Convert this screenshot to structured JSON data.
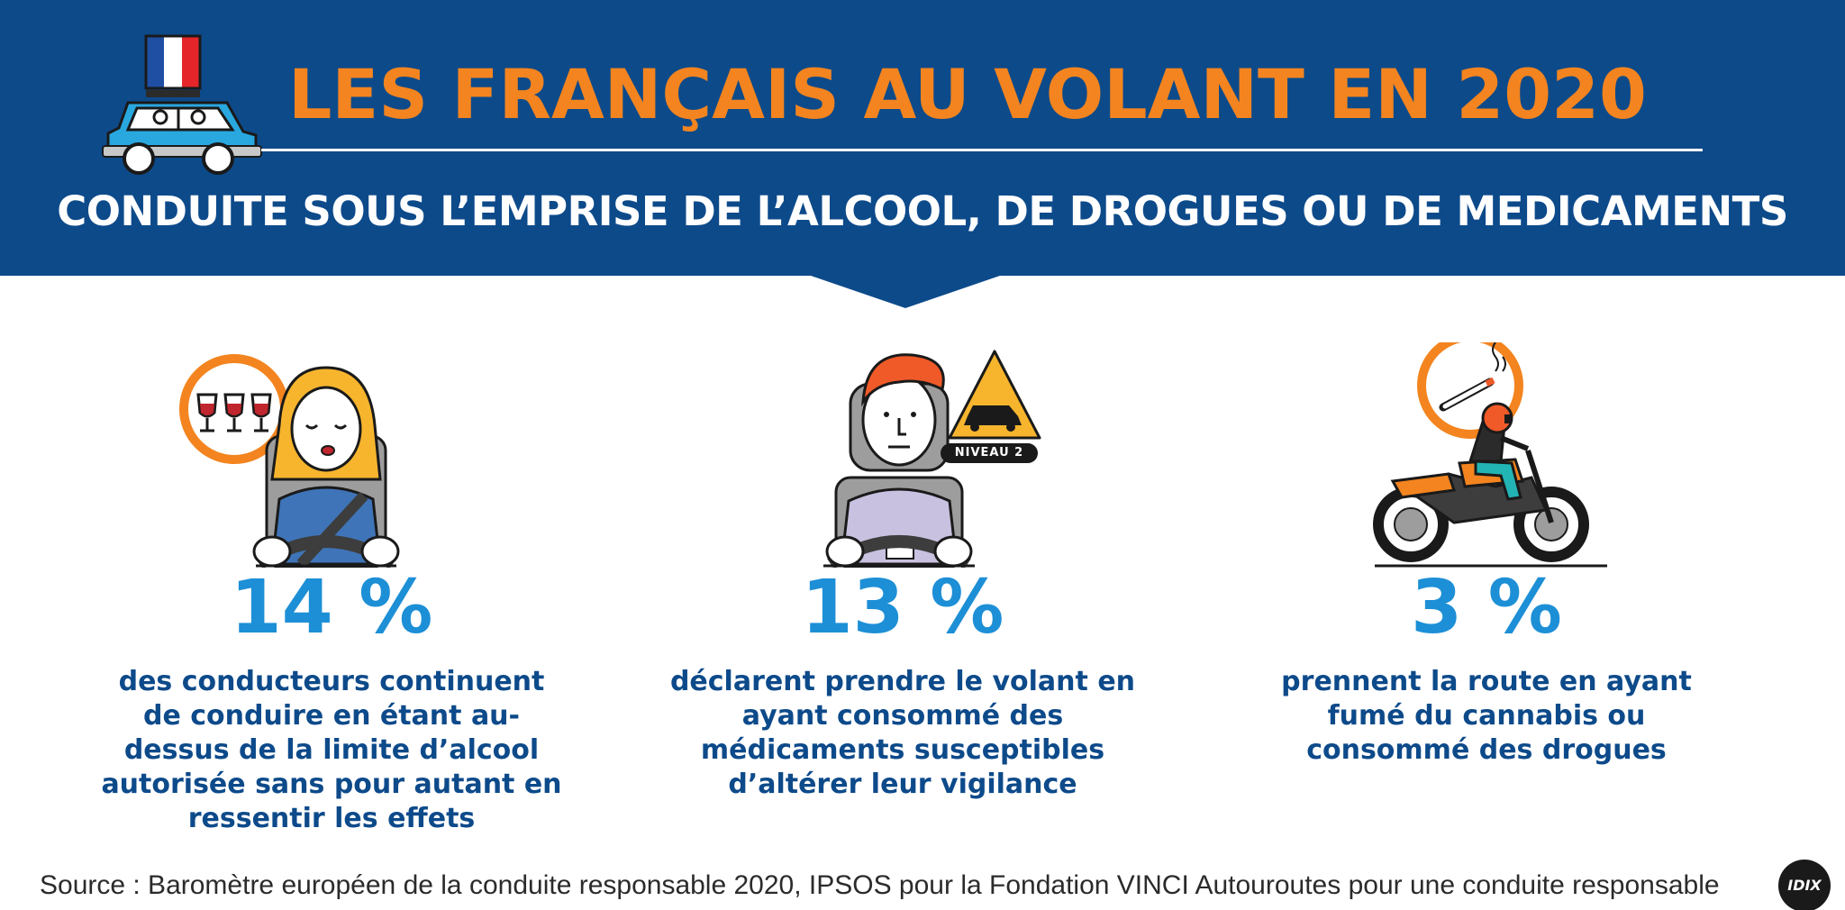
{
  "header": {
    "title": "LES FRANÇAIS AU VOLANT EN 2020",
    "subtitle": "CONDUITE SOUS L’EMPRISE DE L’ALCOOL, DE DROGUES OU DE MEDICAMENTS"
  },
  "stats": [
    {
      "value": "14 %",
      "description": "des conducteurs continuent de conduire en étant au-dessus de la limite d’alcool autorisée sans pour autant en ressentir les effets"
    },
    {
      "value": "13 %",
      "description": "déclarent prendre le volant en ayant consommé des médicaments susceptibles d’altérer leur vigilance",
      "badge": "NIVEAU 2"
    },
    {
      "value": "3 %",
      "description": "prennent la route en ayant fumé du cannabis ou consommé des drogues"
    }
  ],
  "footer": {
    "source": "Source : Baromètre européen de la conduite responsable 2020, IPSOS pour la Fondation VINCI Autouroutes pour une conduite responsable",
    "logo": "IDIX"
  },
  "colors": {
    "header_bg": "#0d4a8a",
    "title_orange": "#f3841f",
    "stat_blue": "#1d8fd6",
    "desc_navy": "#0d4a8a"
  },
  "icons": [
    "car-with-french-flag-icon",
    "wine-glasses-icon",
    "warning-sign-icon",
    "cigarette-icon",
    "motorcycle-icon"
  ]
}
